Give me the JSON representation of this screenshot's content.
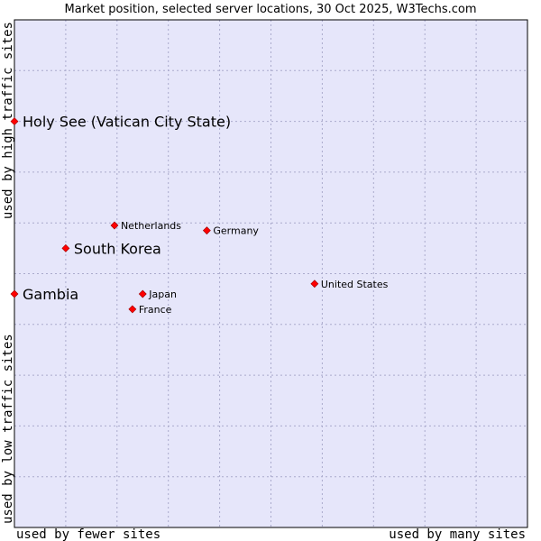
{
  "chart_data": {
    "type": "scatter",
    "title": "Market position, selected server locations, 30 Oct 2025, W3Techs.com",
    "xlabel_left": "used by fewer sites",
    "xlabel_right": "used by many sites",
    "ylabel_bottom": "used by low traffic sites",
    "ylabel_top": "used by high traffic sites",
    "xlim": [
      0,
      10
    ],
    "ylim": [
      0,
      10
    ],
    "grid": true,
    "colors": {
      "plot_bg": "#e6e6fa",
      "grid": "#aaaacc",
      "point": "#ff0000",
      "point_edge": "#990000",
      "border": "#000000"
    },
    "points": [
      {
        "label": "Holy See (Vatican City State)",
        "x": 0.0,
        "y": 8.0,
        "highlight": true
      },
      {
        "label": "South Korea",
        "x": 1.0,
        "y": 5.5,
        "highlight": true
      },
      {
        "label": "Gambia",
        "x": 0.0,
        "y": 4.6,
        "highlight": true
      },
      {
        "label": "Netherlands",
        "x": 1.95,
        "y": 5.95,
        "highlight": false
      },
      {
        "label": "Germany",
        "x": 3.75,
        "y": 5.85,
        "highlight": false
      },
      {
        "label": "United States",
        "x": 5.85,
        "y": 4.8,
        "highlight": false
      },
      {
        "label": "Japan",
        "x": 2.5,
        "y": 4.6,
        "highlight": false
      },
      {
        "label": "France",
        "x": 2.3,
        "y": 4.3,
        "highlight": false
      }
    ]
  }
}
